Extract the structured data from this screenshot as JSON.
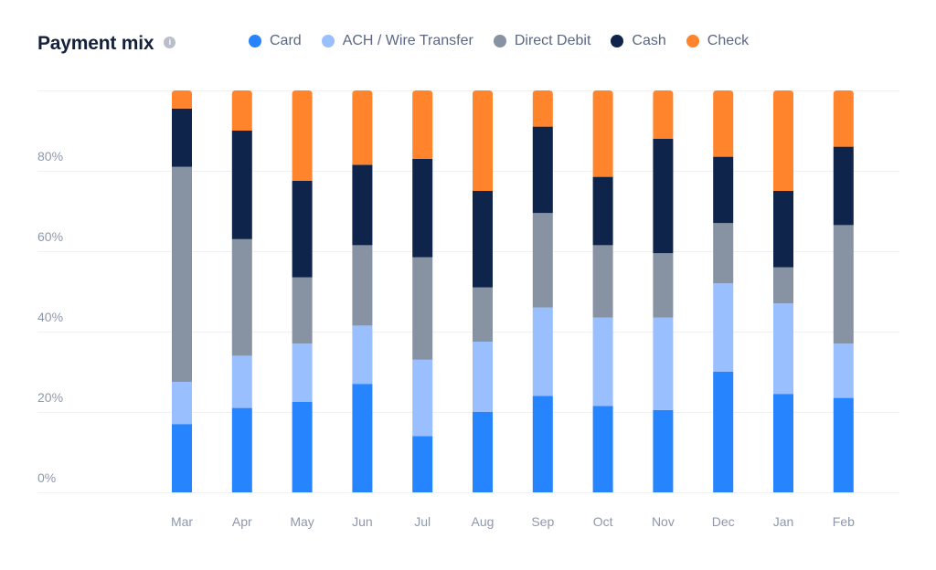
{
  "header": {
    "title": "Payment mix",
    "info_icon": "info-icon"
  },
  "chart_data": {
    "type": "bar",
    "stacked": true,
    "title": "Payment mix",
    "xlabel": "",
    "ylabel": "",
    "ylim": [
      0,
      100
    ],
    "y_ticks": [
      "0%",
      "20%",
      "40%",
      "60%",
      "80%"
    ],
    "y_tick_values": [
      0,
      20,
      40,
      60,
      80
    ],
    "grid": true,
    "legend_position": "top",
    "categories": [
      "Mar",
      "Apr",
      "May",
      "Jun",
      "Jul",
      "Aug",
      "Sep",
      "Oct",
      "Nov",
      "Dec",
      "Jan",
      "Feb"
    ],
    "series": [
      {
        "name": "Card",
        "color": "#2684ff",
        "values": [
          17,
          21,
          22.5,
          27,
          14,
          20,
          24,
          21.5,
          20.5,
          30,
          24.5,
          23.5
        ]
      },
      {
        "name": "ACH / Wire Transfer",
        "color": "#99bfff",
        "values": [
          10.5,
          13,
          14.5,
          14.5,
          19,
          17.5,
          22,
          22,
          23,
          22,
          22.5,
          13.5
        ]
      },
      {
        "name": "Direct Debit",
        "color": "#8792a2",
        "values": [
          53.5,
          29,
          16.5,
          20,
          25.5,
          13.5,
          23.5,
          18,
          16,
          15,
          9,
          29.5
        ]
      },
      {
        "name": "Cash",
        "color": "#0e244b",
        "values": [
          14.5,
          27,
          24,
          20,
          24.5,
          24,
          21.5,
          17,
          28.5,
          16.5,
          19,
          19.5
        ]
      },
      {
        "name": "Check",
        "color": "#ff842b",
        "values": [
          4.5,
          10,
          22.5,
          18.5,
          17,
          25,
          9,
          21.5,
          12,
          16.5,
          25,
          14
        ]
      }
    ]
  }
}
